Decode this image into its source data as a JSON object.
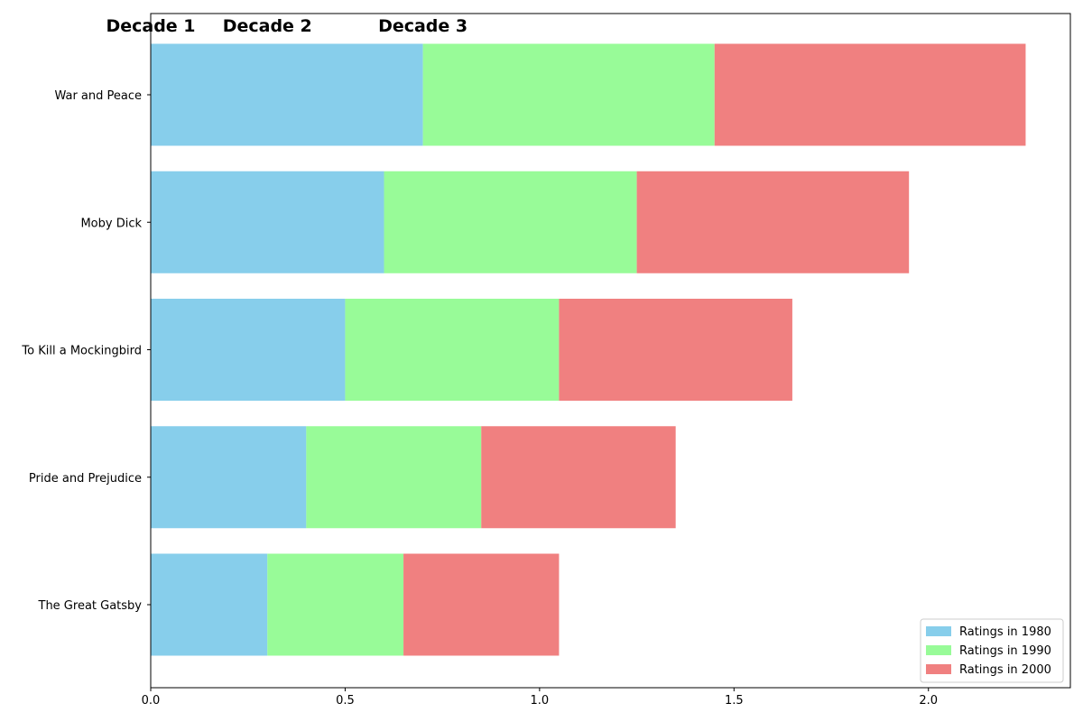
{
  "chart_data": {
    "type": "bar",
    "orientation": "horizontal",
    "stacked": true,
    "categories": [
      "The Great Gatsby",
      "Pride and Prejudice",
      "To Kill a Mockingbird",
      "Moby Dick",
      "War and Peace"
    ],
    "series": [
      {
        "name": "Ratings in 1980",
        "color": "#87CEEB",
        "values": [
          0.3,
          0.4,
          0.5,
          0.6,
          0.7
        ]
      },
      {
        "name": "Ratings in 1990",
        "color": "#98FB98",
        "values": [
          0.35,
          0.45,
          0.55,
          0.65,
          0.75
        ]
      },
      {
        "name": "Ratings in 2000",
        "color": "#F08080",
        "values": [
          0.4,
          0.5,
          0.6,
          0.7,
          0.8
        ]
      }
    ],
    "xlim": [
      0,
      2.365
    ],
    "xticks": [
      0.0,
      0.5,
      1.0,
      1.5,
      2.0
    ],
    "xtick_labels": [
      "0.0",
      "0.5",
      "1.0",
      "1.5",
      "2.0"
    ],
    "annotations": [
      {
        "text": "Decade 1",
        "x": 0.0
      },
      {
        "text": "Decade 2",
        "x": 0.3
      },
      {
        "text": "Decade 3",
        "x": 0.7
      }
    ],
    "legend_position": "lower right",
    "grid": false
  }
}
